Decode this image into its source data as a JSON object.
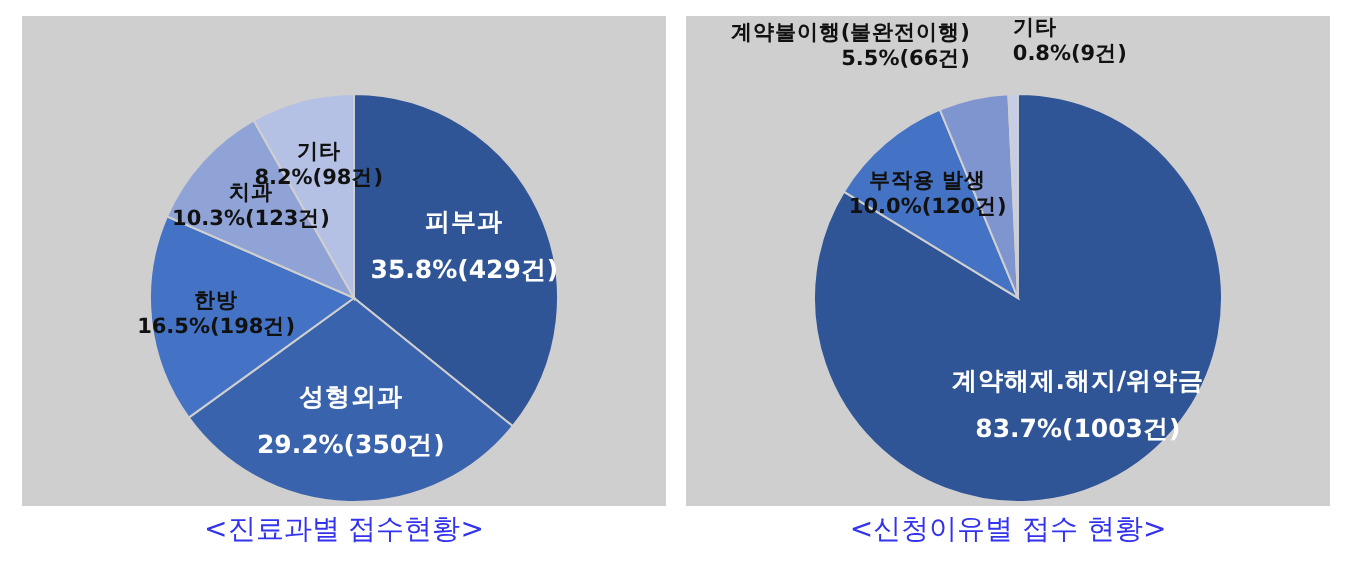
{
  "chart_data": [
    {
      "type": "pie",
      "title": "<진료과별 접수현황>",
      "categories": [
        "피부과",
        "성형외과",
        "한방",
        "치과",
        "기타"
      ],
      "values": [
        429,
        350,
        198,
        123,
        98
      ],
      "value_labels": [
        "35.8%(429건)",
        "29.2%(350건)",
        "16.5%(198건)",
        "10.3%(123건)",
        "8.2%(98건)"
      ],
      "colors": [
        "#2f5597",
        "#3a63ad",
        "#4472c4",
        "#8fa3d6",
        "#b4c0e4"
      ]
    },
    {
      "type": "pie",
      "title": "<신청이유별 접수 현황>",
      "categories": [
        "계약해제.해지/위약금",
        "부작용 발생",
        "계약불이행(불완전이행)",
        "기타"
      ],
      "values": [
        1003,
        120,
        66,
        9
      ],
      "value_labels": [
        "83.7%(1003건)",
        "10.0%(120건)",
        "5.5%(66건)",
        "0.8%(9건)"
      ],
      "colors": [
        "#2f5597",
        "#4472c4",
        "#7f95d0",
        "#c5cde8"
      ]
    }
  ]
}
